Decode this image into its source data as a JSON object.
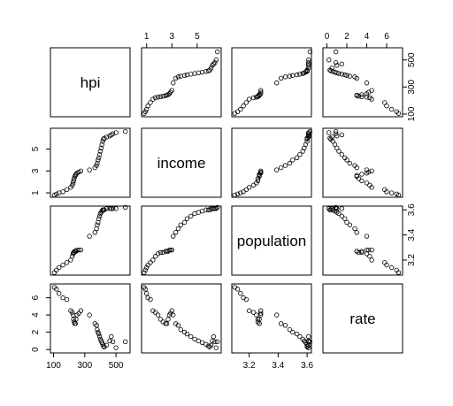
{
  "chart_data": {
    "type": "scatter",
    "title": "",
    "variables": [
      {
        "name": "hpi",
        "label": "hpi",
        "range": [
          80,
          590
        ],
        "ticks": [
          100,
          300,
          500
        ],
        "tick_labels": [
          "100",
          "300",
          "500"
        ]
      },
      {
        "name": "income",
        "label": "income",
        "range": [
          0.6,
          6.9
        ],
        "ticks": [
          1,
          3,
          5
        ],
        "tick_labels": [
          "1",
          "3",
          "5"
        ]
      },
      {
        "name": "population",
        "label": "population",
        "range": [
          3.08,
          3.63
        ],
        "ticks": [
          3.2,
          3.4,
          3.6
        ],
        "tick_labels": [
          "3.2",
          "3.4",
          "3.6"
        ]
      },
      {
        "name": "rate",
        "label": "rate",
        "range": [
          -0.4,
          7.6
        ],
        "ticks": [
          0,
          2,
          4,
          6
        ],
        "tick_labels": [
          "0",
          "2",
          "4",
          "6"
        ]
      }
    ],
    "axes": {
      "bottom": {
        "hpi": [
          "100",
          "300",
          "500"
        ],
        "population": [
          "3.2",
          "3.4",
          "3.6"
        ]
      },
      "top": {
        "income": [
          "1",
          "3",
          "5"
        ],
        "rate": [
          "0",
          "2",
          "4",
          "6"
        ]
      },
      "left": {
        "income": [
          "1",
          "3",
          "5"
        ],
        "rate": [
          "0",
          "2",
          "4",
          "6"
        ]
      },
      "right": {
        "hpi": [
          "100",
          "300",
          "500"
        ],
        "population": [
          "3.2",
          "3.4",
          "3.6"
        ]
      }
    },
    "points": [
      {
        "hpi": 105,
        "income": 0.8,
        "population": 3.1,
        "rate": 7.2
      },
      {
        "hpi": 118,
        "income": 0.9,
        "population": 3.12,
        "rate": 7.0
      },
      {
        "hpi": 135,
        "income": 1.0,
        "population": 3.14,
        "rate": 6.5
      },
      {
        "hpi": 160,
        "income": 1.1,
        "population": 3.16,
        "rate": 6.0
      },
      {
        "hpi": 185,
        "income": 1.3,
        "population": 3.18,
        "rate": 5.8
      },
      {
        "hpi": 210,
        "income": 1.5,
        "population": 3.2,
        "rate": 4.5
      },
      {
        "hpi": 220,
        "income": 1.7,
        "population": 3.23,
        "rate": 4.3
      },
      {
        "hpi": 225,
        "income": 1.9,
        "population": 3.25,
        "rate": 4.0
      },
      {
        "hpi": 228,
        "income": 2.1,
        "population": 3.26,
        "rate": 3.5
      },
      {
        "hpi": 232,
        "income": 2.3,
        "population": 3.26,
        "rate": 3.2
      },
      {
        "hpi": 236,
        "income": 2.5,
        "population": 3.27,
        "rate": 3.0
      },
      {
        "hpi": 240,
        "income": 2.6,
        "population": 3.27,
        "rate": 3.0
      },
      {
        "hpi": 244,
        "income": 2.7,
        "population": 3.27,
        "rate": 3.5
      },
      {
        "hpi": 250,
        "income": 2.8,
        "population": 3.28,
        "rate": 4.0
      },
      {
        "hpi": 262,
        "income": 2.9,
        "population": 3.28,
        "rate": 4.2
      },
      {
        "hpi": 275,
        "income": 3.0,
        "population": 3.28,
        "rate": 4.5
      },
      {
        "hpi": 330,
        "income": 3.1,
        "population": 3.39,
        "rate": 4.0
      },
      {
        "hpi": 365,
        "income": 3.3,
        "population": 3.42,
        "rate": 3.0
      },
      {
        "hpi": 375,
        "income": 3.5,
        "population": 3.45,
        "rate": 2.8
      },
      {
        "hpi": 380,
        "income": 3.7,
        "population": 3.48,
        "rate": 2.3
      },
      {
        "hpi": 385,
        "income": 4.0,
        "population": 3.5,
        "rate": 2.0
      },
      {
        "hpi": 390,
        "income": 4.2,
        "population": 3.53,
        "rate": 1.8
      },
      {
        "hpi": 395,
        "income": 4.5,
        "population": 3.55,
        "rate": 1.5
      },
      {
        "hpi": 400,
        "income": 4.8,
        "population": 3.57,
        "rate": 1.2
      },
      {
        "hpi": 405,
        "income": 5.1,
        "population": 3.58,
        "rate": 1.0
      },
      {
        "hpi": 410,
        "income": 5.4,
        "population": 3.59,
        "rate": 0.8
      },
      {
        "hpi": 415,
        "income": 5.7,
        "population": 3.6,
        "rate": 0.6
      },
      {
        "hpi": 420,
        "income": 5.9,
        "population": 3.6,
        "rate": 0.4
      },
      {
        "hpi": 425,
        "income": 6.0,
        "population": 3.6,
        "rate": 0.3
      },
      {
        "hpi": 440,
        "income": 6.1,
        "population": 3.61,
        "rate": 0.5
      },
      {
        "hpi": 460,
        "income": 6.2,
        "population": 3.61,
        "rate": 1.0
      },
      {
        "hpi": 470,
        "income": 6.3,
        "population": 3.61,
        "rate": 1.5
      },
      {
        "hpi": 480,
        "income": 6.4,
        "population": 3.61,
        "rate": 0.9
      },
      {
        "hpi": 500,
        "income": 6.5,
        "population": 3.61,
        "rate": 0.2
      },
      {
        "hpi": 560,
        "income": 6.6,
        "population": 3.62,
        "rate": 0.9
      }
    ]
  }
}
